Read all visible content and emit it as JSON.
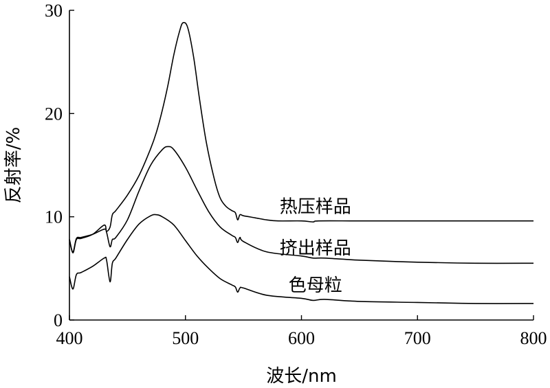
{
  "chart_data": {
    "type": "line",
    "title": "",
    "xlabel": "波长/nm",
    "ylabel": "反射率/%",
    "xlim": [
      400,
      800
    ],
    "ylim": [
      0,
      30
    ],
    "xticks": [
      400,
      500,
      600,
      700,
      800
    ],
    "yticks": [
      0,
      10,
      20,
      30
    ],
    "grid": false,
    "legend": "none",
    "series": [
      {
        "name": "热压样品",
        "x": [
          400,
          403,
          406,
          410,
          420,
          430,
          432,
          435,
          437,
          440,
          450,
          460,
          470,
          475,
          480,
          485,
          490,
          495,
          498,
          502,
          507,
          512,
          518,
          525,
          530,
          535,
          540,
          543,
          545,
          547,
          550,
          560,
          570,
          580,
          600,
          610,
          615,
          650,
          700,
          750,
          800
        ],
        "y": [
          7.8,
          6.5,
          7.8,
          7.9,
          8.3,
          9.2,
          8.6,
          9.0,
          10.2,
          10.6,
          12.1,
          14.0,
          16.6,
          18.2,
          20.3,
          22.8,
          25.7,
          28.0,
          28.8,
          28.3,
          25.5,
          21.5,
          17.2,
          13.6,
          11.8,
          11.0,
          10.6,
          10.4,
          9.7,
          10.2,
          10.1,
          9.9,
          9.7,
          9.6,
          9.6,
          9.5,
          9.6,
          9.6,
          9.6,
          9.6,
          9.6
        ]
      },
      {
        "name": "挤出样品",
        "x": [
          400,
          403,
          406,
          410,
          420,
          430,
          432,
          435,
          437,
          440,
          450,
          460,
          470,
          480,
          485,
          490,
          500,
          510,
          520,
          530,
          540,
          543,
          545,
          547,
          550,
          570,
          600,
          610,
          620,
          650,
          700,
          750,
          800
        ],
        "y": [
          7.8,
          6.6,
          7.9,
          8.0,
          8.3,
          8.8,
          8.5,
          7.1,
          7.8,
          8.0,
          9.7,
          12.5,
          15.0,
          16.5,
          16.8,
          16.5,
          14.8,
          12.6,
          10.5,
          9.0,
          8.2,
          8.0,
          7.5,
          8.0,
          7.6,
          6.6,
          6.2,
          6.0,
          6.0,
          5.8,
          5.6,
          5.5,
          5.5
        ]
      },
      {
        "name": "色母粒",
        "x": [
          400,
          403,
          406,
          410,
          420,
          430,
          432,
          435,
          437,
          440,
          450,
          460,
          470,
          475,
          480,
          490,
          500,
          510,
          520,
          530,
          540,
          543,
          545,
          547,
          550,
          570,
          600,
          610,
          620,
          650,
          700,
          750,
          800
        ],
        "y": [
          4.2,
          3.0,
          4.4,
          4.6,
          5.2,
          6.0,
          5.8,
          3.7,
          5.5,
          6.0,
          7.8,
          9.3,
          10.1,
          10.2,
          10.0,
          9.2,
          7.7,
          6.2,
          5.0,
          4.0,
          3.4,
          3.2,
          2.7,
          3.1,
          3.1,
          2.4,
          2.1,
          1.9,
          2.0,
          1.8,
          1.7,
          1.6,
          1.6
        ]
      }
    ],
    "annotations": [
      {
        "text": "热压样品",
        "x": 612,
        "y": 10.4
      },
      {
        "text": "挤出样品",
        "x": 612,
        "y": 6.4
      },
      {
        "text": "色母粒",
        "x": 612,
        "y": 2.8
      }
    ]
  }
}
